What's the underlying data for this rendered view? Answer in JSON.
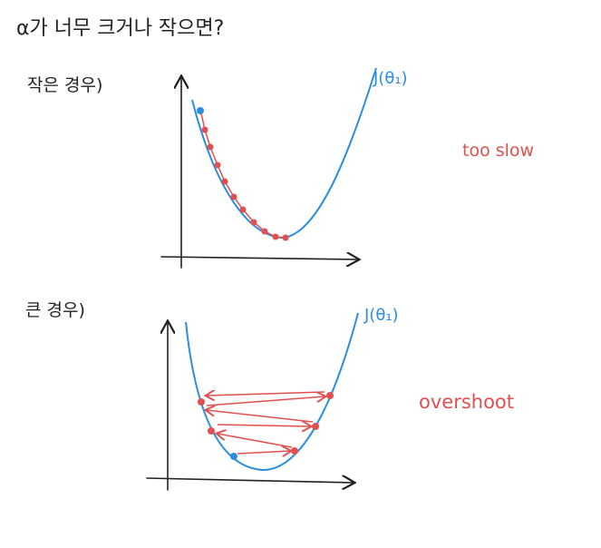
{
  "header": {
    "title": "α가 너무 크거나 작으면?"
  },
  "panels": [
    {
      "label": "작은 경우)",
      "curve_label": "J(θ₁)",
      "note": "too slow"
    },
    {
      "label": "큰 경우)",
      "curve_label": "J(θ₁)",
      "note": "overshoot"
    }
  ]
}
